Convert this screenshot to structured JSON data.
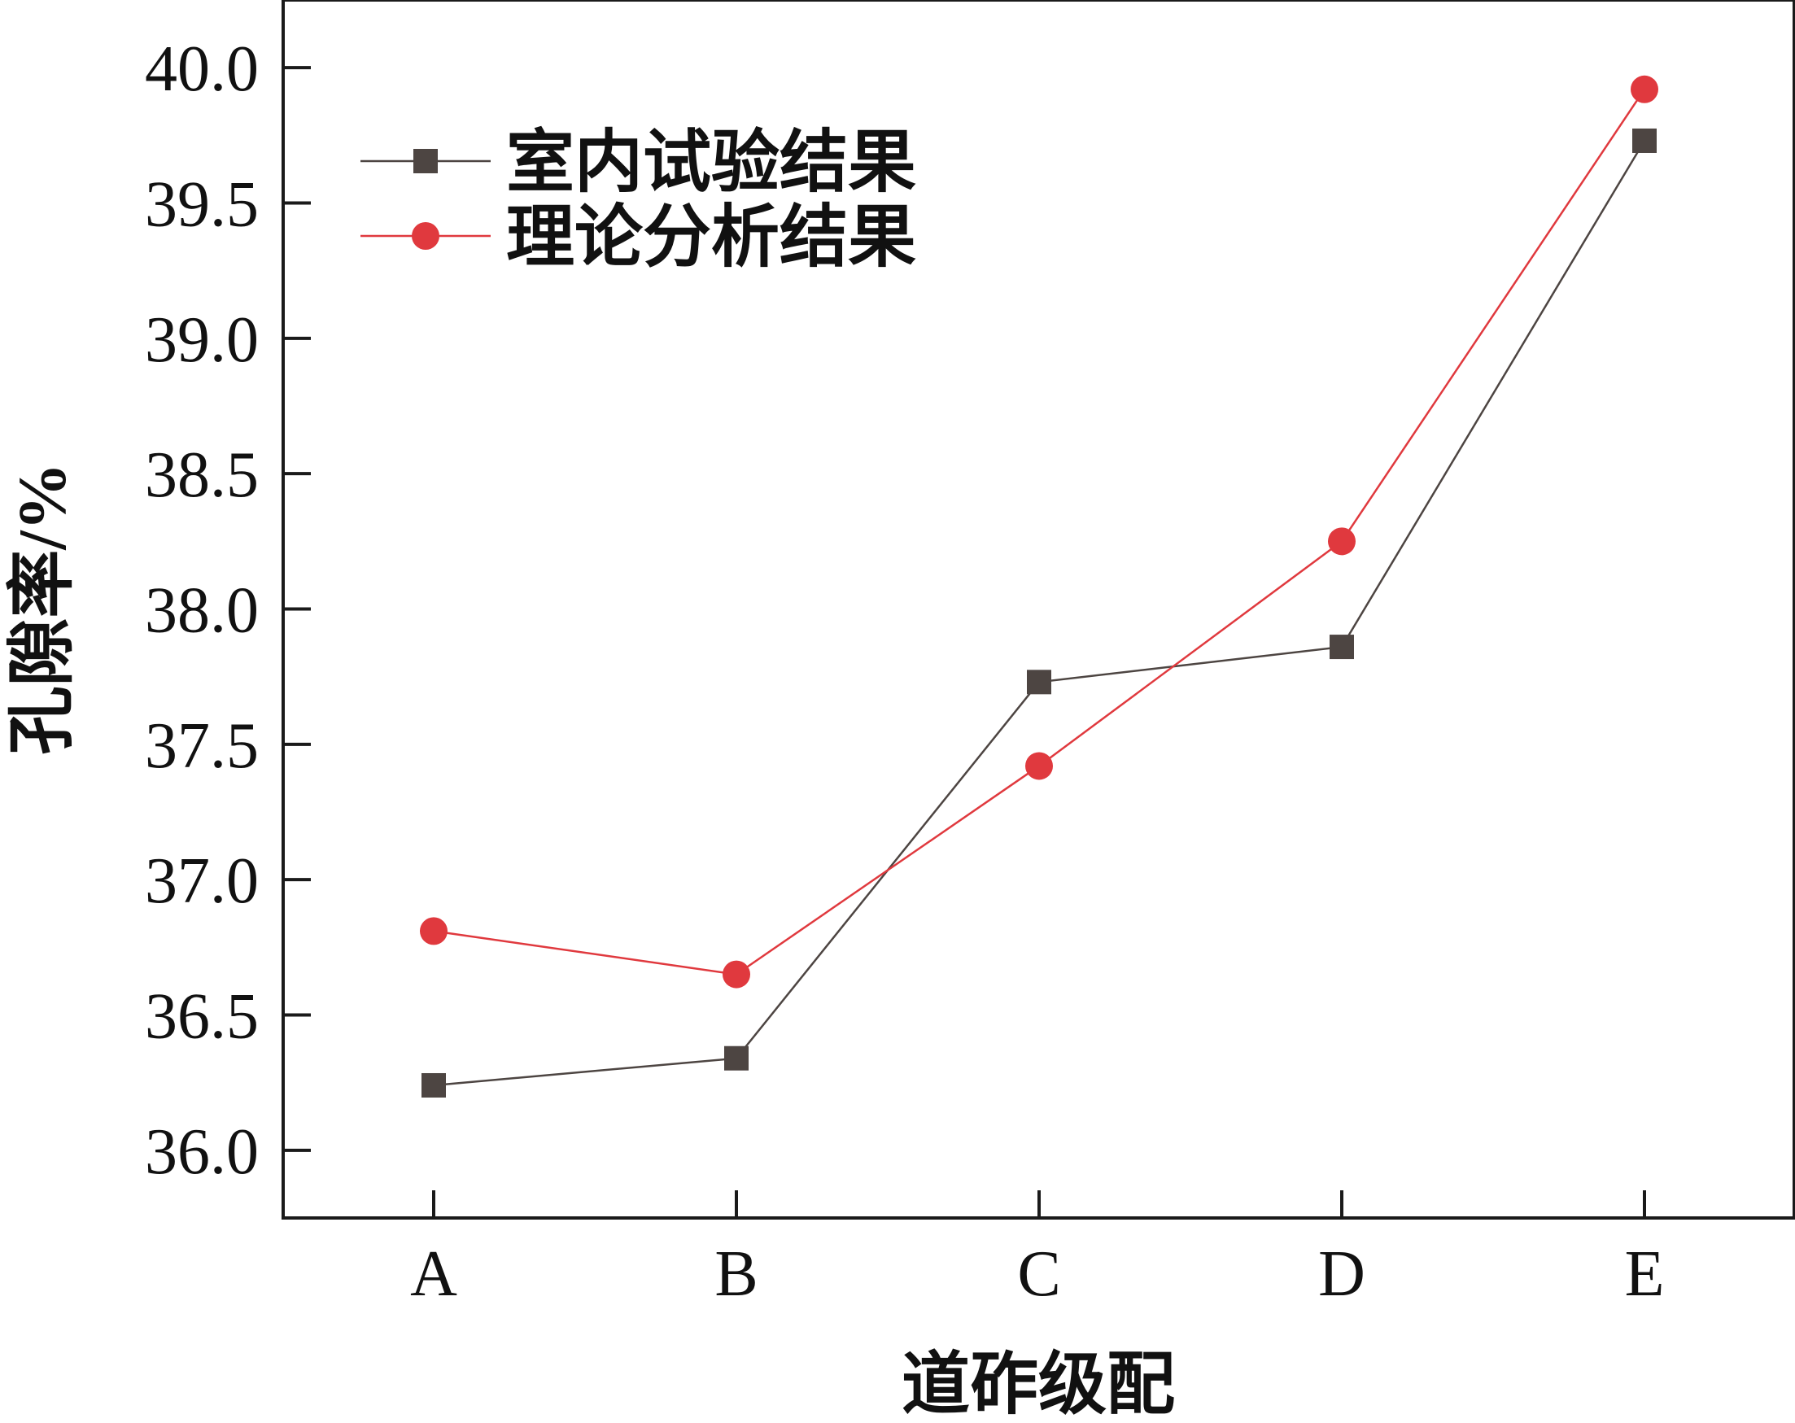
{
  "chart_data": {
    "type": "line",
    "title": "",
    "xlabel": "道砟级配",
    "ylabel": "孔隙率/%",
    "categories": [
      "A",
      "B",
      "C",
      "D",
      "E"
    ],
    "ylim": [
      35.75,
      40.25
    ],
    "yticks": [
      "36.0",
      "36.5",
      "37.0",
      "37.5",
      "38.0",
      "38.5",
      "39.0",
      "39.5",
      "40.0"
    ],
    "grid": false,
    "legend_position": "top-left",
    "series": [
      {
        "name": "室内试验结果",
        "values": [
          36.24,
          36.34,
          37.73,
          37.86,
          39.73
        ],
        "color": "#4d4542",
        "marker": "square"
      },
      {
        "name": "理论分析结果",
        "values": [
          36.81,
          36.65,
          37.42,
          38.25,
          39.92
        ],
        "color": "#e0393e",
        "marker": "circle"
      }
    ]
  }
}
